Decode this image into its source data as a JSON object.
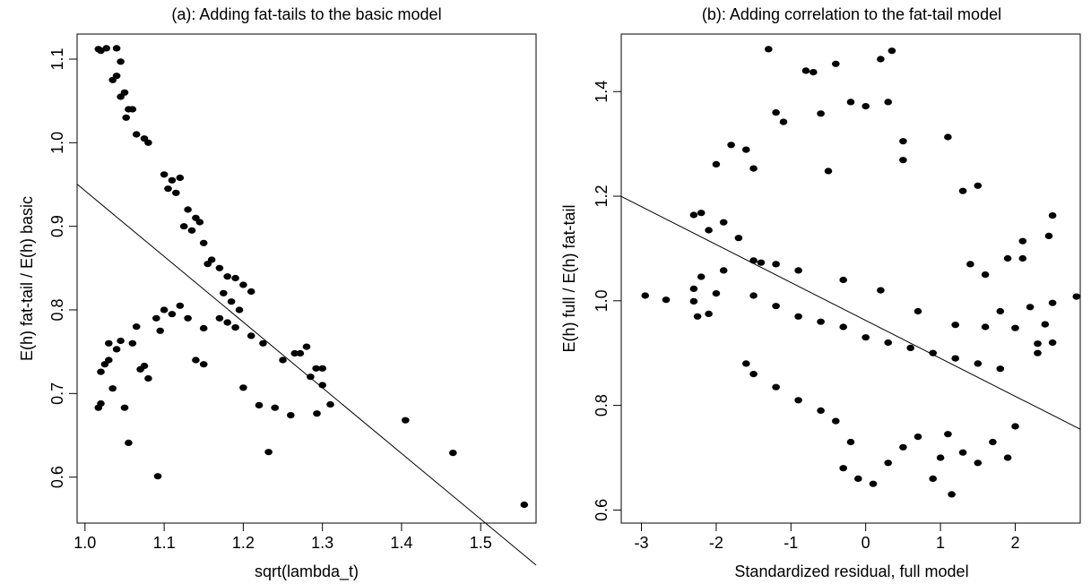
{
  "chart_data": [
    {
      "type": "scatter",
      "title": "(a): Adding fat-tails to the basic model",
      "xlabel": "sqrt(lambda_t)",
      "ylabel": "E(h) fat-tail / E(h) basic",
      "xlim": [
        0.99,
        1.57
      ],
      "ylim": [
        0.545,
        1.13
      ],
      "xticks": [
        1.0,
        1.1,
        1.2,
        1.3,
        1.4,
        1.5
      ],
      "xtick_labels": [
        "1.0",
        "1.1",
        "1.2",
        "1.3",
        "1.4",
        "1.5"
      ],
      "yticks": [
        0.6,
        0.7,
        0.8,
        0.9,
        1.0,
        1.1
      ],
      "ytick_labels": [
        "0.6",
        "0.7",
        "0.8",
        "0.9",
        "1.0",
        "1.1"
      ],
      "grid": false,
      "regression_line": {
        "intercept": 1.728,
        "slope": -0.7855
      },
      "points": [
        [
          1.555,
          0.567
        ],
        [
          1.465,
          0.629
        ],
        [
          1.405,
          0.668
        ],
        [
          1.092,
          0.601
        ],
        [
          1.055,
          0.641
        ],
        [
          1.232,
          0.63
        ],
        [
          1.26,
          0.674
        ],
        [
          1.293,
          0.676
        ],
        [
          1.31,
          0.687
        ],
        [
          1.24,
          0.683
        ],
        [
          1.22,
          0.686
        ],
        [
          1.2,
          0.707
        ],
        [
          1.25,
          0.74
        ],
        [
          1.265,
          0.748
        ],
        [
          1.28,
          0.756
        ],
        [
          1.272,
          0.748
        ],
        [
          1.3,
          0.73
        ],
        [
          1.292,
          0.73
        ],
        [
          1.285,
          0.72
        ],
        [
          1.3,
          0.71
        ],
        [
          1.017,
          1.112
        ],
        [
          1.02,
          1.11
        ],
        [
          1.027,
          1.113
        ],
        [
          1.04,
          1.113
        ],
        [
          1.045,
          1.097
        ],
        [
          1.04,
          1.08
        ],
        [
          1.035,
          1.075
        ],
        [
          1.05,
          1.06
        ],
        [
          1.045,
          1.055
        ],
        [
          1.055,
          1.04
        ],
        [
          1.06,
          1.04
        ],
        [
          1.052,
          1.03
        ],
        [
          1.065,
          1.01
        ],
        [
          1.075,
          1.005
        ],
        [
          1.08,
          1.0
        ],
        [
          1.1,
          0.962
        ],
        [
          1.11,
          0.955
        ],
        [
          1.12,
          0.958
        ],
        [
          1.105,
          0.945
        ],
        [
          1.115,
          0.94
        ],
        [
          1.13,
          0.92
        ],
        [
          1.14,
          0.91
        ],
        [
          1.145,
          0.905
        ],
        [
          1.125,
          0.9
        ],
        [
          1.135,
          0.895
        ],
        [
          1.15,
          0.88
        ],
        [
          1.16,
          0.86
        ],
        [
          1.155,
          0.855
        ],
        [
          1.17,
          0.85
        ],
        [
          1.18,
          0.84
        ],
        [
          1.19,
          0.838
        ],
        [
          1.2,
          0.83
        ],
        [
          1.21,
          0.822
        ],
        [
          1.175,
          0.82
        ],
        [
          1.185,
          0.81
        ],
        [
          1.195,
          0.8
        ],
        [
          1.17,
          0.79
        ],
        [
          1.18,
          0.785
        ],
        [
          1.19,
          0.779
        ],
        [
          1.21,
          0.769
        ],
        [
          1.225,
          0.76
        ],
        [
          1.15,
          0.778
        ],
        [
          1.14,
          0.74
        ],
        [
          1.15,
          0.735
        ],
        [
          1.075,
          0.733
        ],
        [
          1.07,
          0.729
        ],
        [
          1.08,
          0.718
        ],
        [
          1.05,
          0.683
        ],
        [
          1.035,
          0.706
        ],
        [
          1.02,
          0.688
        ],
        [
          1.017,
          0.683
        ],
        [
          1.025,
          0.735
        ],
        [
          1.03,
          0.74
        ],
        [
          1.04,
          0.753
        ],
        [
          1.02,
          0.726
        ],
        [
          1.03,
          0.76
        ],
        [
          1.045,
          0.763
        ],
        [
          1.06,
          0.76
        ],
        [
          1.065,
          0.78
        ],
        [
          1.09,
          0.79
        ],
        [
          1.1,
          0.8
        ],
        [
          1.11,
          0.795
        ],
        [
          1.12,
          0.805
        ],
        [
          1.13,
          0.79
        ],
        [
          1.095,
          0.775
        ]
      ]
    },
    {
      "type": "scatter",
      "title": "(b): Adding correlation to the fat-tail model",
      "xlabel": "Standardized residual, full model",
      "ylabel": "E(h) full / E(h) fat-tail",
      "xlim": [
        -3.27,
        2.87
      ],
      "ylim": [
        0.575,
        1.51
      ],
      "xticks": [
        -3,
        -2,
        -1,
        0,
        1,
        2
      ],
      "xtick_labels": [
        "-3",
        "-2",
        "-1",
        "0",
        "1",
        "2"
      ],
      "yticks": [
        0.6,
        0.8,
        1.0,
        1.2,
        1.4
      ],
      "ytick_labels": [
        "0.6",
        "0.8",
        "1.0",
        "1.2",
        "1.4"
      ],
      "grid": false,
      "regression_line": {
        "intercept": 0.9625,
        "slope": -0.0725
      },
      "points": [
        [
          -1.3,
          1.481
        ],
        [
          -0.8,
          1.44
        ],
        [
          -0.7,
          1.437
        ],
        [
          -0.4,
          1.453
        ],
        [
          0.2,
          1.462
        ],
        [
          0.35,
          1.478
        ],
        [
          -1.2,
          1.36
        ],
        [
          -1.1,
          1.342
        ],
        [
          -0.6,
          1.358
        ],
        [
          -0.2,
          1.38
        ],
        [
          0.0,
          1.372
        ],
        [
          0.3,
          1.38
        ],
        [
          0.5,
          1.305
        ],
        [
          1.1,
          1.313
        ],
        [
          -1.8,
          1.298
        ],
        [
          -1.6,
          1.289
        ],
        [
          -2.0,
          1.261
        ],
        [
          -1.5,
          1.253
        ],
        [
          -0.5,
          1.248
        ],
        [
          0.5,
          1.269
        ],
        [
          -2.2,
          1.168
        ],
        [
          -2.3,
          1.164
        ],
        [
          -1.9,
          1.15
        ],
        [
          -2.1,
          1.135
        ],
        [
          -1.7,
          1.12
        ],
        [
          -2.95,
          1.01
        ],
        [
          -2.67,
          1.002
        ],
        [
          -2.3,
          1.023
        ],
        [
          -2.2,
          1.046
        ],
        [
          -2.0,
          1.014
        ],
        [
          -1.9,
          1.058
        ],
        [
          -2.3,
          0.999
        ],
        [
          -2.25,
          0.97
        ],
        [
          -2.1,
          0.975
        ],
        [
          -1.5,
          1.077
        ],
        [
          -1.4,
          1.073
        ],
        [
          -1.2,
          1.07
        ],
        [
          -0.9,
          1.058
        ],
        [
          -0.3,
          1.04
        ],
        [
          0.2,
          1.02
        ],
        [
          0.7,
          0.98
        ],
        [
          1.2,
          0.954
        ],
        [
          1.6,
          0.95
        ],
        [
          2.0,
          0.948
        ],
        [
          2.4,
          0.955
        ],
        [
          2.82,
          1.008
        ],
        [
          2.5,
          0.996
        ],
        [
          2.2,
          0.988
        ],
        [
          2.3,
          0.918
        ],
        [
          2.5,
          0.92
        ],
        [
          2.45,
          1.124
        ],
        [
          2.5,
          1.163
        ],
        [
          2.1,
          1.114
        ],
        [
          2.1,
          1.081
        ],
        [
          1.9,
          1.081
        ],
        [
          1.5,
          1.22
        ],
        [
          1.3,
          1.21
        ],
        [
          1.4,
          1.07
        ],
        [
          1.6,
          1.05
        ],
        [
          1.8,
          0.98
        ],
        [
          -1.6,
          0.88
        ],
        [
          -1.5,
          0.86
        ],
        [
          -1.2,
          0.835
        ],
        [
          -0.9,
          0.81
        ],
        [
          -0.6,
          0.79
        ],
        [
          -0.4,
          0.77
        ],
        [
          -0.2,
          0.73
        ],
        [
          -0.3,
          0.68
        ],
        [
          -0.1,
          0.66
        ],
        [
          0.1,
          0.65
        ],
        [
          0.3,
          0.69
        ],
        [
          0.5,
          0.72
        ],
        [
          0.7,
          0.74
        ],
        [
          0.9,
          0.66
        ],
        [
          1.0,
          0.7
        ],
        [
          1.1,
          0.745
        ],
        [
          1.15,
          0.63
        ],
        [
          1.3,
          0.71
        ],
        [
          1.5,
          0.69
        ],
        [
          1.7,
          0.73
        ],
        [
          1.9,
          0.7
        ],
        [
          2.0,
          0.76
        ],
        [
          2.3,
          0.9
        ],
        [
          1.8,
          0.87
        ],
        [
          1.5,
          0.88
        ],
        [
          1.2,
          0.89
        ],
        [
          0.9,
          0.9
        ],
        [
          0.6,
          0.91
        ],
        [
          0.3,
          0.92
        ],
        [
          0.0,
          0.93
        ],
        [
          -0.3,
          0.95
        ],
        [
          -0.6,
          0.96
        ],
        [
          -0.9,
          0.97
        ],
        [
          -1.2,
          0.99
        ],
        [
          -1.5,
          1.01
        ]
      ]
    }
  ]
}
